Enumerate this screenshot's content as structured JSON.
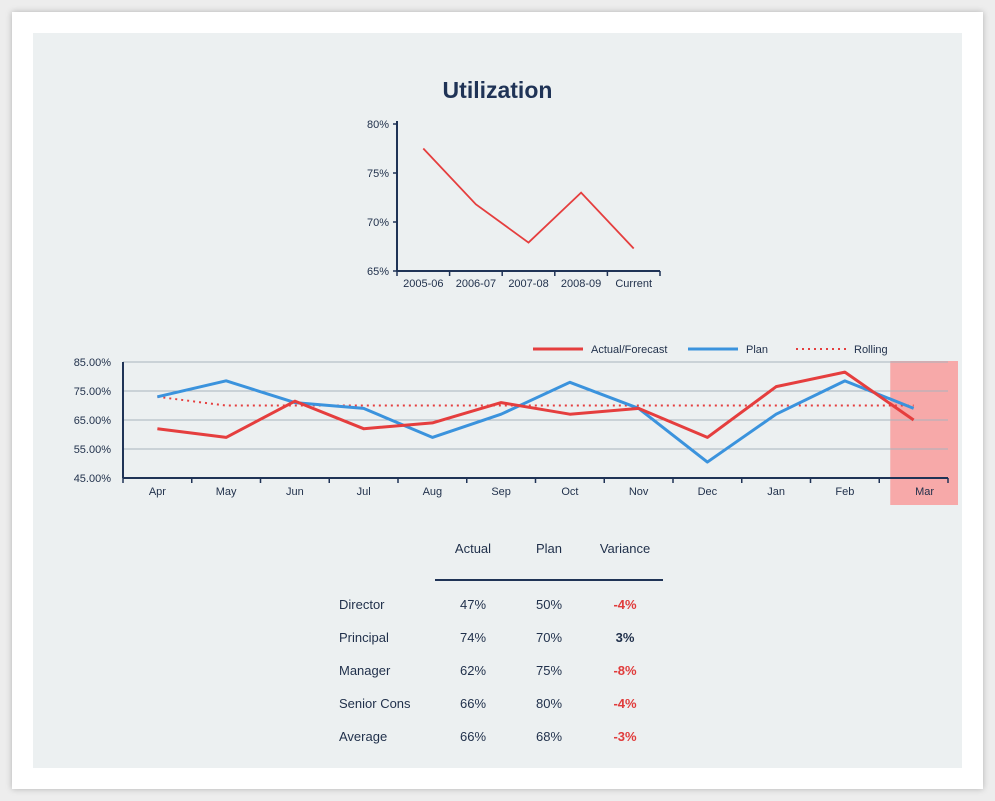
{
  "title": "Utilization",
  "colors": {
    "actual": "#e53e3e",
    "plan": "#3b93dd",
    "rolling": "#e53e3e",
    "highlight": "#f7a9a9",
    "axis": "#1f3356",
    "grid": "#a9b4bd",
    "negative": "#e03b3b"
  },
  "chart_data": [
    {
      "type": "line",
      "categories": [
        "2005-06",
        "2006-07",
        "2007-08",
        "2008-09",
        "Current"
      ],
      "series": [
        {
          "values": [
            77.5,
            71.8,
            67.9,
            73.0,
            67.3
          ]
        }
      ],
      "ylim": [
        65,
        80
      ],
      "yticks": [
        "65%",
        "70%",
        "75%",
        "80%"
      ],
      "ytick_values": [
        65,
        70,
        75,
        80
      ],
      "grid": false
    },
    {
      "type": "line",
      "categories": [
        "Apr",
        "May",
        "Jun",
        "Jul",
        "Aug",
        "Sep",
        "Oct",
        "Nov",
        "Dec",
        "Jan",
        "Feb",
        "Mar"
      ],
      "series": [
        {
          "name": "Actual/Forecast",
          "values": [
            62,
            59,
            71.5,
            62,
            64,
            71,
            67,
            69,
            59,
            76.5,
            81.5,
            65
          ]
        },
        {
          "name": "Plan",
          "values": [
            73,
            78.5,
            71,
            69,
            59,
            67,
            78,
            69,
            50.5,
            67,
            78.5,
            69
          ]
        },
        {
          "name": "Rolling",
          "values": [
            73,
            70,
            70,
            70,
            70,
            70,
            70,
            70,
            70,
            70,
            70,
            70
          ]
        }
      ],
      "ylim": [
        45,
        85
      ],
      "yticks": [
        "45.00%",
        "55.00%",
        "65.00%",
        "75.00%",
        "85.00%"
      ],
      "ytick_values": [
        45,
        55,
        65,
        75,
        85
      ],
      "highlighted_category": "Mar",
      "grid": true,
      "legend": "top-right"
    }
  ],
  "table": {
    "columns": [
      "Actual",
      "Plan",
      "Variance"
    ],
    "rows": [
      {
        "label": "Director",
        "actual": "47%",
        "plan": "50%",
        "variance": "-4%",
        "negative": true
      },
      {
        "label": "Principal",
        "actual": "74%",
        "plan": "70%",
        "variance": "3%",
        "negative": false
      },
      {
        "label": "Manager",
        "actual": "62%",
        "plan": "75%",
        "variance": "-8%",
        "negative": true
      },
      {
        "label": "Senior Cons",
        "actual": "66%",
        "plan": "80%",
        "variance": "-4%",
        "negative": true
      },
      {
        "label": "Average",
        "actual": "66%",
        "plan": "68%",
        "variance": "-3%",
        "negative": true
      }
    ]
  }
}
